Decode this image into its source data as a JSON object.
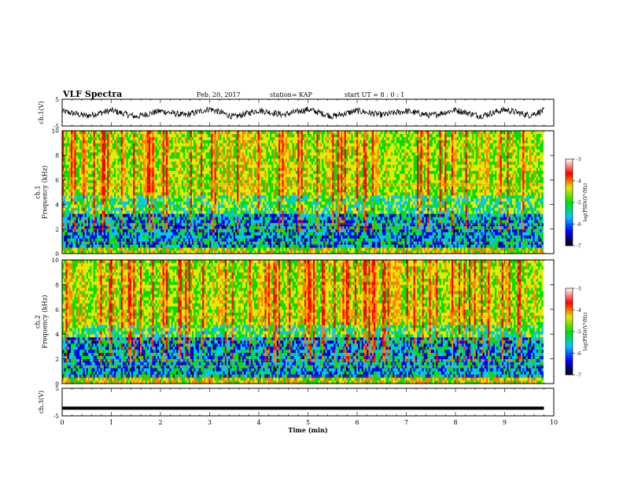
{
  "header": {
    "title": "VLF Spectra",
    "date": "Feb. 20, 2017",
    "station": "station= KAP",
    "start": "start  UT =  8 : 0 : 1"
  },
  "chart_data": [
    {
      "type": "line",
      "panel": "ch1-waveform",
      "ylabel": "ch.1(V)",
      "ylim": [
        -5,
        5
      ],
      "yticks": [
        "5",
        "-5"
      ],
      "xlim": [
        0,
        10
      ],
      "series": [
        {
          "color": "#000000",
          "note_shape": "noisy trace centered near 0 V with slow oscillation of about ±1.5 V",
          "x": [
            0,
            0.5,
            1,
            1.5,
            2,
            2.5,
            3,
            3.5,
            4,
            4.5,
            5,
            5.5,
            6,
            6.5,
            7,
            7.5,
            8,
            8.5,
            9,
            9.5,
            9.8
          ],
          "y": [
            0.5,
            -1.2,
            0.8,
            -1.5,
            0.6,
            -1.0,
            1.4,
            -1.6,
            0.9,
            -0.8,
            1.2,
            -1.4,
            0.7,
            -0.9,
            0.6,
            -1.1,
            1.0,
            -1.3,
            1.1,
            -1.0,
            0.8
          ]
        }
      ]
    },
    {
      "type": "heatmap",
      "panel": "ch1-spectrogram",
      "ylabel": "ch.1\nFrequency  (kHz)",
      "ylim": [
        0,
        10
      ],
      "yticks": [
        "0",
        "2",
        "4",
        "6",
        "8",
        "10"
      ],
      "xlim": [
        0,
        9.8
      ],
      "colorbar": {
        "label": "log(PSD)(V²/Hz)",
        "range": [
          -7,
          -3
        ],
        "ticks": [
          "-3",
          "-4",
          "-5",
          "-6",
          "-7"
        ]
      }
    },
    {
      "type": "heatmap",
      "panel": "ch2-spectrogram",
      "ylabel": "ch.2\nFrequency  (kHz)",
      "ylim": [
        0,
        10
      ],
      "yticks": [
        "0",
        "2",
        "4",
        "6",
        "8",
        "10"
      ],
      "xlim": [
        0,
        9.8
      ],
      "colorbar": {
        "label": "log(PSD)(V²/Hz)",
        "range": [
          -7,
          -3
        ],
        "ticks": [
          "-3",
          "-4",
          "-5",
          "-6",
          "-7"
        ]
      }
    },
    {
      "type": "line",
      "panel": "ch3-waveform",
      "ylabel": "ch.3(V)",
      "ylim": [
        -5,
        5
      ],
      "yticks": [
        "5",
        "-5"
      ],
      "xlim": [
        0,
        10
      ],
      "series": [
        {
          "color": "#000000",
          "x": [
            0,
            9.8
          ],
          "y": [
            -2.2,
            -2.2
          ]
        }
      ]
    }
  ],
  "x_axis": {
    "label": "Time  (min)",
    "ticks": [
      "0",
      "1",
      "2",
      "3",
      "4",
      "5",
      "6",
      "7",
      "8",
      "9",
      "10"
    ],
    "range": [
      0,
      10
    ]
  },
  "colors": {
    "red": "#ff0000",
    "orange": "#ff8000",
    "yellow": "#e8e800",
    "green": "#00e000",
    "cyan": "#00c8ff",
    "blue": "#0000ff",
    "navy": "#000060"
  }
}
